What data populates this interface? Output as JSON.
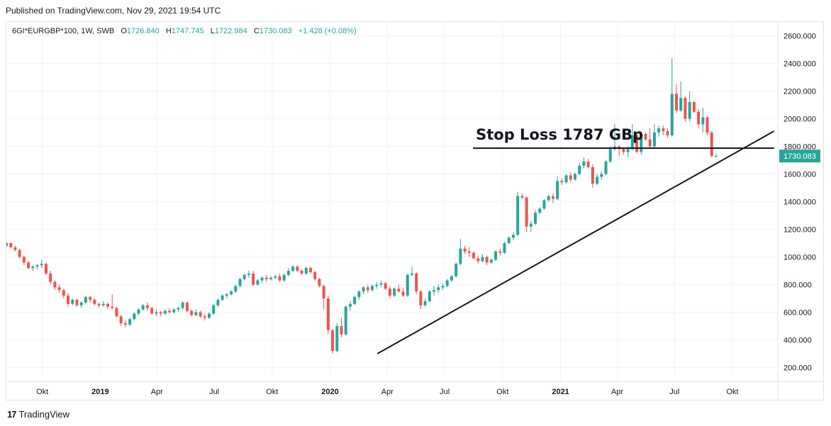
{
  "header": {
    "published": "Published on TradingView.com, Nov 29, 2021 19:54 UTC"
  },
  "legend": {
    "symbol": "6GI*EURGBP*100, 1W, SWB",
    "open_label": "O",
    "open": "1726.840",
    "high_label": "H",
    "high": "1747.745",
    "low_label": "L",
    "low": "1722.984",
    "close_label": "C",
    "close": "1730.083",
    "change": "+1.428 (+0.08%)"
  },
  "price_badge": "1730.083",
  "footer": {
    "logo_mark": "17",
    "brand": "TradingView"
  },
  "colors": {
    "up": "#26a69a",
    "down": "#ef5350",
    "grid": "#f0f3fa",
    "text": "#131722",
    "line": "#131722"
  },
  "chart_data": {
    "type": "candlestick",
    "interval": "1W",
    "y_axis": {
      "min": 100,
      "max": 2700,
      "ticks": [
        200,
        400,
        600,
        800,
        1000,
        1200,
        1400,
        1600,
        1800,
        2000,
        2200,
        2400,
        2600
      ],
      "tick_labels": [
        "200.000",
        "400.000",
        "600.000",
        "800.000",
        "1000.000",
        "1200.000",
        "1400.000",
        "1600.000",
        "1800.000",
        "2000.000",
        "2200.000",
        "2400.000",
        "2600.000"
      ]
    },
    "x_axis": {
      "start": "2018-08-05",
      "end": "2021-12-12",
      "ticks": [
        {
          "date": "2018-10-01",
          "label": "Okt",
          "bold": false
        },
        {
          "date": "2019-01-01",
          "label": "2019",
          "bold": true
        },
        {
          "date": "2019-04-01",
          "label": "Apr",
          "bold": false
        },
        {
          "date": "2019-07-01",
          "label": "Jul",
          "bold": false
        },
        {
          "date": "2019-10-01",
          "label": "Okt",
          "bold": false
        },
        {
          "date": "2020-01-01",
          "label": "2020",
          "bold": true
        },
        {
          "date": "2020-04-01",
          "label": "Apr",
          "bold": false
        },
        {
          "date": "2020-07-01",
          "label": "Jul",
          "bold": false
        },
        {
          "date": "2020-10-01",
          "label": "Okt",
          "bold": false
        },
        {
          "date": "2021-01-01",
          "label": "2021",
          "bold": true
        },
        {
          "date": "2021-04-01",
          "label": "Apr",
          "bold": false
        },
        {
          "date": "2021-07-01",
          "label": "Jul",
          "bold": false
        },
        {
          "date": "2021-10-01",
          "label": "Okt",
          "bold": false
        }
      ]
    },
    "first_week": "2018-08-05",
    "candles": [
      [
        1080,
        1110,
        1070,
        1100
      ],
      [
        1100,
        1105,
        1060,
        1070
      ],
      [
        1070,
        1080,
        1040,
        1050
      ],
      [
        1050,
        1060,
        990,
        1000
      ],
      [
        1000,
        1010,
        940,
        960
      ],
      [
        960,
        970,
        910,
        920
      ],
      [
        920,
        940,
        900,
        930
      ],
      [
        930,
        950,
        910,
        940
      ],
      [
        940,
        980,
        920,
        950
      ],
      [
        950,
        960,
        870,
        880
      ],
      [
        880,
        900,
        800,
        820
      ],
      [
        820,
        830,
        760,
        780
      ],
      [
        780,
        800,
        740,
        760
      ],
      [
        760,
        770,
        700,
        720
      ],
      [
        720,
        740,
        640,
        660
      ],
      [
        660,
        700,
        650,
        690
      ],
      [
        690,
        700,
        640,
        650
      ],
      [
        650,
        680,
        630,
        670
      ],
      [
        670,
        720,
        660,
        710
      ],
      [
        710,
        720,
        670,
        690
      ],
      [
        690,
        700,
        650,
        660
      ],
      [
        660,
        670,
        630,
        650
      ],
      [
        650,
        680,
        640,
        660
      ],
      [
        660,
        670,
        620,
        640
      ],
      [
        640,
        730,
        620,
        630
      ],
      [
        630,
        640,
        560,
        570
      ],
      [
        570,
        580,
        500,
        520
      ],
      [
        520,
        540,
        490,
        510
      ],
      [
        510,
        560,
        500,
        550
      ],
      [
        550,
        600,
        540,
        590
      ],
      [
        590,
        630,
        580,
        620
      ],
      [
        620,
        660,
        610,
        650
      ],
      [
        650,
        670,
        610,
        630
      ],
      [
        630,
        640,
        580,
        590
      ],
      [
        590,
        620,
        570,
        600
      ],
      [
        600,
        610,
        570,
        590
      ],
      [
        590,
        620,
        580,
        610
      ],
      [
        610,
        630,
        590,
        600
      ],
      [
        600,
        630,
        590,
        620
      ],
      [
        620,
        640,
        600,
        630
      ],
      [
        630,
        680,
        620,
        670
      ],
      [
        670,
        680,
        600,
        610
      ],
      [
        610,
        620,
        570,
        580
      ],
      [
        580,
        620,
        570,
        600
      ],
      [
        600,
        610,
        560,
        570
      ],
      [
        570,
        590,
        540,
        560
      ],
      [
        560,
        600,
        550,
        590
      ],
      [
        590,
        660,
        580,
        650
      ],
      [
        650,
        700,
        640,
        690
      ],
      [
        690,
        730,
        680,
        720
      ],
      [
        720,
        740,
        700,
        730
      ],
      [
        730,
        760,
        720,
        750
      ],
      [
        750,
        800,
        740,
        790
      ],
      [
        790,
        850,
        780,
        840
      ],
      [
        840,
        880,
        830,
        870
      ],
      [
        870,
        900,
        850,
        880
      ],
      [
        880,
        900,
        790,
        800
      ],
      [
        800,
        840,
        790,
        830
      ],
      [
        830,
        860,
        810,
        850
      ],
      [
        850,
        870,
        820,
        840
      ],
      [
        840,
        860,
        830,
        850
      ],
      [
        850,
        870,
        840,
        860
      ],
      [
        860,
        880,
        820,
        830
      ],
      [
        830,
        880,
        820,
        870
      ],
      [
        870,
        920,
        860,
        900
      ],
      [
        900,
        940,
        890,
        930
      ],
      [
        930,
        940,
        890,
        900
      ],
      [
        900,
        910,
        870,
        880
      ],
      [
        880,
        930,
        870,
        920
      ],
      [
        920,
        930,
        880,
        890
      ],
      [
        890,
        900,
        830,
        840
      ],
      [
        840,
        850,
        780,
        790
      ],
      [
        790,
        800,
        620,
        700
      ],
      [
        700,
        720,
        440,
        470
      ],
      [
        470,
        480,
        300,
        320
      ],
      [
        320,
        520,
        310,
        500
      ],
      [
        500,
        560,
        420,
        440
      ],
      [
        440,
        650,
        430,
        640
      ],
      [
        640,
        680,
        610,
        660
      ],
      [
        660,
        720,
        650,
        710
      ],
      [
        710,
        760,
        690,
        750
      ],
      [
        750,
        790,
        730,
        780
      ],
      [
        780,
        800,
        740,
        760
      ],
      [
        760,
        800,
        750,
        790
      ],
      [
        790,
        820,
        770,
        800
      ],
      [
        800,
        830,
        780,
        810
      ],
      [
        810,
        820,
        760,
        770
      ],
      [
        770,
        790,
        700,
        720
      ],
      [
        720,
        780,
        710,
        770
      ],
      [
        770,
        800,
        740,
        750
      ],
      [
        750,
        780,
        710,
        720
      ],
      [
        720,
        880,
        710,
        870
      ],
      [
        870,
        930,
        860,
        880
      ],
      [
        880,
        890,
        730,
        750
      ],
      [
        750,
        760,
        620,
        650
      ],
      [
        650,
        700,
        640,
        680
      ],
      [
        680,
        760,
        670,
        750
      ],
      [
        750,
        790,
        720,
        760
      ],
      [
        760,
        800,
        740,
        780
      ],
      [
        780,
        810,
        760,
        790
      ],
      [
        790,
        840,
        780,
        830
      ],
      [
        830,
        870,
        820,
        860
      ],
      [
        860,
        960,
        850,
        950
      ],
      [
        950,
        1130,
        940,
        1060
      ],
      [
        1060,
        1080,
        1020,
        1040
      ],
      [
        1040,
        1070,
        1000,
        1030
      ],
      [
        1030,
        1040,
        980,
        990
      ],
      [
        990,
        1010,
        950,
        970
      ],
      [
        970,
        1020,
        960,
        1000
      ],
      [
        1000,
        1010,
        940,
        960
      ],
      [
        960,
        990,
        950,
        980
      ],
      [
        980,
        1050,
        970,
        1040
      ],
      [
        1040,
        1060,
        1010,
        1030
      ],
      [
        1030,
        1110,
        1020,
        1100
      ],
      [
        1100,
        1150,
        1090,
        1140
      ],
      [
        1140,
        1180,
        1120,
        1160
      ],
      [
        1160,
        1470,
        1150,
        1440
      ],
      [
        1440,
        1460,
        1420,
        1430
      ],
      [
        1430,
        1440,
        1180,
        1220
      ],
      [
        1220,
        1260,
        1180,
        1240
      ],
      [
        1240,
        1340,
        1230,
        1320
      ],
      [
        1320,
        1360,
        1310,
        1350
      ],
      [
        1350,
        1420,
        1340,
        1410
      ],
      [
        1410,
        1450,
        1400,
        1440
      ],
      [
        1440,
        1460,
        1390,
        1420
      ],
      [
        1420,
        1580,
        1410,
        1550
      ],
      [
        1550,
        1570,
        1520,
        1540
      ],
      [
        1540,
        1600,
        1530,
        1590
      ],
      [
        1590,
        1610,
        1540,
        1560
      ],
      [
        1560,
        1610,
        1550,
        1600
      ],
      [
        1600,
        1680,
        1590,
        1660
      ],
      [
        1660,
        1720,
        1640,
        1690
      ],
      [
        1690,
        1710,
        1640,
        1650
      ],
      [
        1650,
        1670,
        1500,
        1530
      ],
      [
        1530,
        1600,
        1520,
        1580
      ],
      [
        1580,
        1620,
        1560,
        1600
      ],
      [
        1600,
        1700,
        1590,
        1690
      ],
      [
        1690,
        1800,
        1680,
        1780
      ],
      [
        1780,
        1960,
        1770,
        1800
      ],
      [
        1800,
        1810,
        1730,
        1780
      ],
      [
        1780,
        1790,
        1740,
        1760
      ],
      [
        1760,
        1800,
        1720,
        1780
      ],
      [
        1780,
        1960,
        1770,
        1880
      ],
      [
        1880,
        1890,
        1750,
        1760
      ],
      [
        1760,
        1910,
        1740,
        1890
      ],
      [
        1890,
        1900,
        1840,
        1850
      ],
      [
        1850,
        1930,
        1790,
        1800
      ],
      [
        1800,
        1960,
        1790,
        1900
      ],
      [
        1900,
        1950,
        1870,
        1930
      ],
      [
        1930,
        1950,
        1880,
        1910
      ],
      [
        1910,
        1930,
        1860,
        1880
      ],
      [
        1880,
        2440,
        1870,
        2180
      ],
      [
        2180,
        2250,
        2040,
        2060
      ],
      [
        2060,
        2270,
        2050,
        2150
      ],
      [
        2150,
        2160,
        1980,
        2000
      ],
      [
        2000,
        2200,
        1980,
        2120
      ],
      [
        2120,
        2130,
        2040,
        2050
      ],
      [
        2050,
        2070,
        1930,
        1960
      ],
      [
        1960,
        2080,
        1900,
        2010
      ],
      [
        2010,
        2020,
        1880,
        1900
      ],
      [
        1900,
        1910,
        1720,
        1730
      ],
      [
        1726.84,
        1747.745,
        1722.984,
        1730.083
      ]
    ],
    "trendline": {
      "from": {
        "date": "2020-03-16",
        "value": 300
      },
      "to": {
        "date": "2021-12-06",
        "value": 1910
      }
    },
    "stop_loss": {
      "value": 1787,
      "from": "2020-08-15",
      "to": "2021-12-06",
      "label": "Stop Loss 1787 GBp"
    },
    "last_price": 1730.083
  }
}
